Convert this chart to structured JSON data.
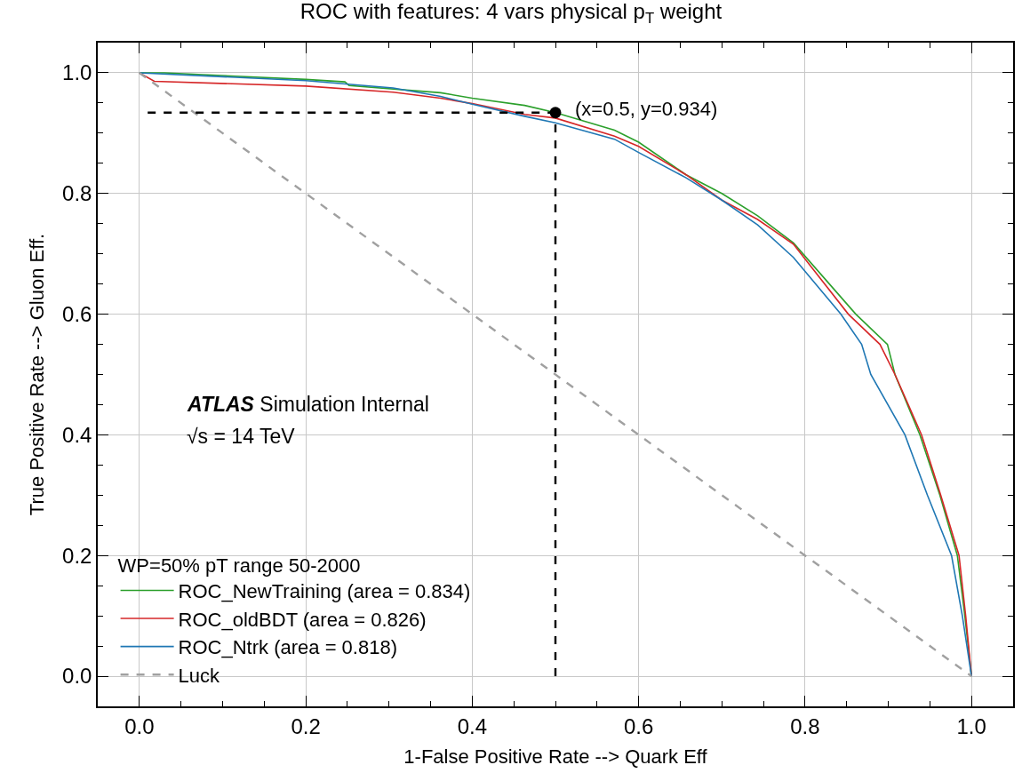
{
  "chart_data": {
    "type": "line",
    "title": "ROC with features: 4 vars physical p$_{T}$ weight",
    "xlabel": "1-False Positive Rate --> Quark Eff",
    "ylabel": "True Positive Rate --> Gluon Eff.",
    "legend_title": "WP=50% pT range 50-2000",
    "xlim": [
      -0.05,
      1.05
    ],
    "ylim": [
      -0.05,
      1.05
    ],
    "xticks": [
      {
        "value": 0,
        "label": "0.0"
      },
      0.2,
      0.4,
      0.6,
      0.8,
      {
        "value": 1,
        "label": "1.0"
      }
    ],
    "yticks": [
      {
        "value": 0,
        "label": "0.0"
      },
      0.2,
      0.4,
      0.6,
      0.8,
      {
        "value": 1,
        "label": "1.0"
      }
    ],
    "grid": true,
    "legend": "bottom left",
    "series": [
      {
        "name": "ROC_NewTraining (area = 0.834)",
        "color": "#2ca02c",
        "x": [
          0,
          0.03,
          0.2,
          0.247,
          0.252,
          0.362,
          0.4,
          0.463,
          0.5,
          0.571,
          0.6,
          0.657,
          0.7,
          0.743,
          0.786,
          0.861,
          0.899,
          0.908,
          0.938,
          0.962,
          0.983,
          0.992,
          1.0
        ],
        "values": [
          1.0,
          1.0,
          0.989,
          0.985,
          0.979,
          0.967,
          0.958,
          0.946,
          0.934,
          0.905,
          0.885,
          0.831,
          0.8,
          0.763,
          0.718,
          0.6,
          0.55,
          0.5,
          0.4,
          0.3,
          0.2,
          0.1,
          0.0
        ]
      },
      {
        "name": "ROC_oldBDT (area = 0.826)",
        "color": "#d62728",
        "x": [
          0,
          0.018,
          0.2,
          0.305,
          0.362,
          0.4,
          0.463,
          0.5,
          0.571,
          0.6,
          0.657,
          0.7,
          0.743,
          0.786,
          0.852,
          0.89,
          0.908,
          0.94,
          0.963,
          0.985,
          0.993,
          1.0
        ],
        "values": [
          1.0,
          0.986,
          0.978,
          0.968,
          0.958,
          0.949,
          0.931,
          0.925,
          0.895,
          0.878,
          0.831,
          0.789,
          0.757,
          0.716,
          0.6,
          0.55,
          0.5,
          0.4,
          0.3,
          0.2,
          0.1,
          0.0
        ]
      },
      {
        "name": "ROC_Ntrk (area = 0.818)",
        "color": "#1f77b4",
        "x": [
          0,
          0.2,
          0.305,
          0.362,
          0.4,
          0.463,
          0.5,
          0.571,
          0.6,
          0.657,
          0.7,
          0.743,
          0.786,
          0.843,
          0.868,
          0.879,
          0.92,
          0.947,
          0.976,
          0.989,
          1.0
        ],
        "values": [
          1.0,
          0.987,
          0.975,
          0.961,
          0.948,
          0.928,
          0.917,
          0.89,
          0.868,
          0.826,
          0.789,
          0.748,
          0.694,
          0.6,
          0.55,
          0.5,
          0.4,
          0.3,
          0.2,
          0.1,
          0.0
        ]
      },
      {
        "name": "Luck",
        "color": "#a0a0a0",
        "line_style": "dashed",
        "x": [
          0,
          1
        ],
        "values": [
          1,
          0
        ]
      },
      {
        "color": "#000000",
        "line_style": "dashed",
        "x": [
          0.01,
          0.5
        ],
        "values": [
          0.934,
          0.934
        ]
      },
      {
        "color": "#000000",
        "line_style": "dashed",
        "x": [
          0.5,
          0.5
        ],
        "values": [
          0.0,
          0.934
        ]
      },
      {
        "type": "scatter",
        "color": "#000000",
        "marker": "circle",
        "x": [
          0.5
        ],
        "values": [
          0.934
        ]
      }
    ],
    "annotations": [
      {
        "text": "(x=0.5, y=0.934)",
        "x": 0.5,
        "y": 0.934
      },
      "ATLAS Simulation Internal",
      "√s = 14 TeV"
    ]
  }
}
